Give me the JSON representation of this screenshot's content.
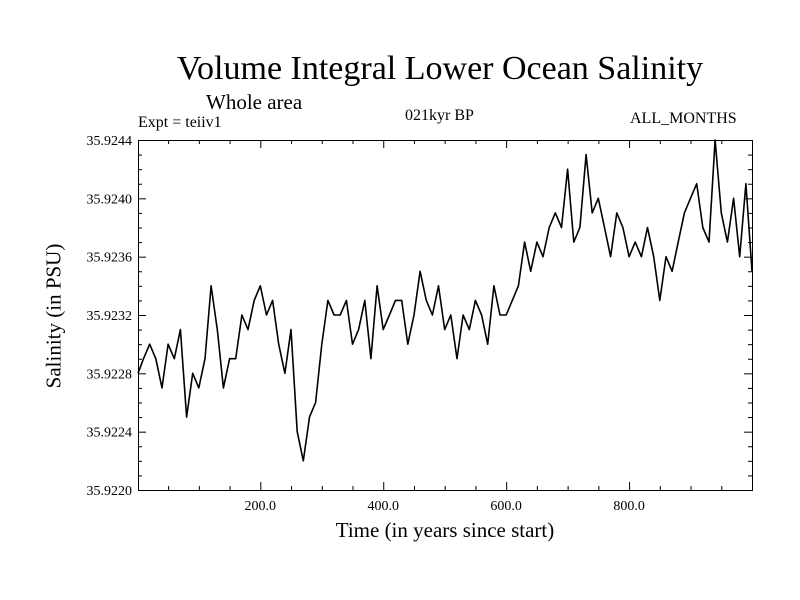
{
  "chart_data": {
    "type": "line",
    "title": "Volume Integral Lower Ocean Salinity",
    "subtitle": "Whole area",
    "expt_label": "Expt = teiiv1",
    "period_label": "021kyr BP",
    "months_label": "ALL_MONTHS",
    "xlabel": "Time (in years since start)",
    "ylabel": "Salinity (in PSU)",
    "xlim": [
      1,
      1000
    ],
    "ylim": [
      35.922,
      35.9244
    ],
    "xticks": [
      200,
      400,
      600,
      800
    ],
    "xtick_labels": [
      "200.0",
      "400.0",
      "600.0",
      "800.0"
    ],
    "yticks": [
      35.922,
      35.9224,
      35.9228,
      35.9232,
      35.9236,
      35.924,
      35.9244
    ],
    "ytick_labels": [
      "35.9220",
      "35.9224",
      "35.9228",
      "35.9232",
      "35.9236",
      "35.9240",
      "35.9244"
    ],
    "grid": false,
    "series": [
      {
        "color": "#000000",
        "x": [
          1,
          10,
          20,
          30,
          40,
          50,
          60,
          70,
          80,
          90,
          100,
          110,
          120,
          130,
          140,
          150,
          160,
          170,
          180,
          190,
          200,
          210,
          220,
          230,
          240,
          250,
          260,
          270,
          280,
          290,
          300,
          310,
          320,
          330,
          340,
          350,
          360,
          370,
          380,
          390,
          400,
          410,
          420,
          430,
          440,
          450,
          460,
          470,
          480,
          490,
          500,
          510,
          520,
          530,
          540,
          550,
          560,
          570,
          580,
          590,
          600,
          610,
          620,
          630,
          640,
          650,
          660,
          670,
          680,
          690,
          700,
          710,
          720,
          730,
          740,
          750,
          760,
          770,
          780,
          790,
          800,
          810,
          820,
          830,
          840,
          850,
          860,
          870,
          880,
          890,
          900,
          910,
          920,
          930,
          940,
          950,
          960,
          970,
          980,
          990,
          1000
        ],
        "y": [
          35.9228,
          35.9229,
          35.923,
          35.9229,
          35.9227,
          35.923,
          35.9229,
          35.9231,
          35.9225,
          35.9228,
          35.9227,
          35.9229,
          35.9234,
          35.9231,
          35.9227,
          35.9229,
          35.9229,
          35.9232,
          35.9231,
          35.9233,
          35.9234,
          35.9232,
          35.9233,
          35.923,
          35.9228,
          35.9231,
          35.9224,
          35.9222,
          35.9225,
          35.9226,
          35.923,
          35.9233,
          35.9232,
          35.9232,
          35.9233,
          35.923,
          35.9231,
          35.9233,
          35.9229,
          35.9234,
          35.9231,
          35.9232,
          35.9233,
          35.9233,
          35.923,
          35.9232,
          35.9235,
          35.9233,
          35.9232,
          35.9234,
          35.9231,
          35.9232,
          35.9229,
          35.9232,
          35.9231,
          35.9233,
          35.9232,
          35.923,
          35.9234,
          35.9232,
          35.9232,
          35.9233,
          35.9234,
          35.9237,
          35.9235,
          35.9237,
          35.9236,
          35.9238,
          35.9239,
          35.9238,
          35.9242,
          35.9237,
          35.9238,
          35.9243,
          35.9239,
          35.924,
          35.9238,
          35.9236,
          35.9239,
          35.9238,
          35.9236,
          35.9237,
          35.9236,
          35.9238,
          35.9236,
          35.9233,
          35.9236,
          35.9235,
          35.9237,
          35.9239,
          35.924,
          35.9241,
          35.9238,
          35.9237,
          35.9244,
          35.9239,
          35.9237,
          35.924,
          35.9236,
          35.9241,
          35.9235
        ]
      }
    ]
  }
}
